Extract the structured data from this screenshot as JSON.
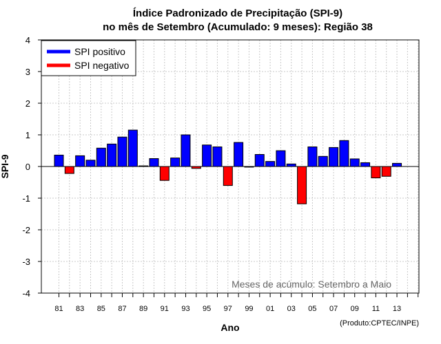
{
  "chart_data": {
    "type": "bar",
    "title_line1": "Índice Padronizado de Precipitação (SPI-9)",
    "title_line2": "no mês de Setembro (Acumulado: 9 meses): Região 38",
    "xlabel": "Ano",
    "ylabel": "SPI-9",
    "ylim": [
      -4,
      4
    ],
    "yticks": [
      -4,
      -3,
      -2,
      -1,
      0,
      1,
      2,
      3,
      4
    ],
    "grid": true,
    "legend_position": "top-left",
    "legend": [
      {
        "label": "SPI positivo",
        "color": "#0000ff"
      },
      {
        "label": "SPI negativo",
        "color": "#ff0000"
      }
    ],
    "x_tick_labels": [
      "81",
      "83",
      "85",
      "87",
      "89",
      "91",
      "93",
      "95",
      "97",
      "99",
      "01",
      "03",
      "05",
      "07",
      "09",
      "11",
      "13"
    ],
    "categories": [
      "1981",
      "1982",
      "1983",
      "1984",
      "1985",
      "1986",
      "1987",
      "1988",
      "1989",
      "1990",
      "1991",
      "1992",
      "1993",
      "1994",
      "1995",
      "1996",
      "1997",
      "1998",
      "1999",
      "2000",
      "2001",
      "2002",
      "2003",
      "2004",
      "2005",
      "2006",
      "2007",
      "2008",
      "2009",
      "2010",
      "2011",
      "2012",
      "2013"
    ],
    "values": [
      0.36,
      -0.22,
      0.34,
      0.2,
      0.58,
      0.71,
      0.93,
      1.15,
      0.02,
      0.25,
      -0.44,
      0.27,
      1.0,
      -0.06,
      0.68,
      0.62,
      -0.6,
      0.76,
      -0.02,
      0.38,
      0.16,
      0.5,
      0.08,
      -1.18,
      0.62,
      0.32,
      0.6,
      0.82,
      0.24,
      0.12,
      -0.36,
      -0.31,
      0.1
    ],
    "positive_color": "#0000ff",
    "negative_color": "#ff0000",
    "annotation": "Meses de acúmulo: Setembro a Maio",
    "credit": "(Produto:CPTEC/INPE)"
  }
}
